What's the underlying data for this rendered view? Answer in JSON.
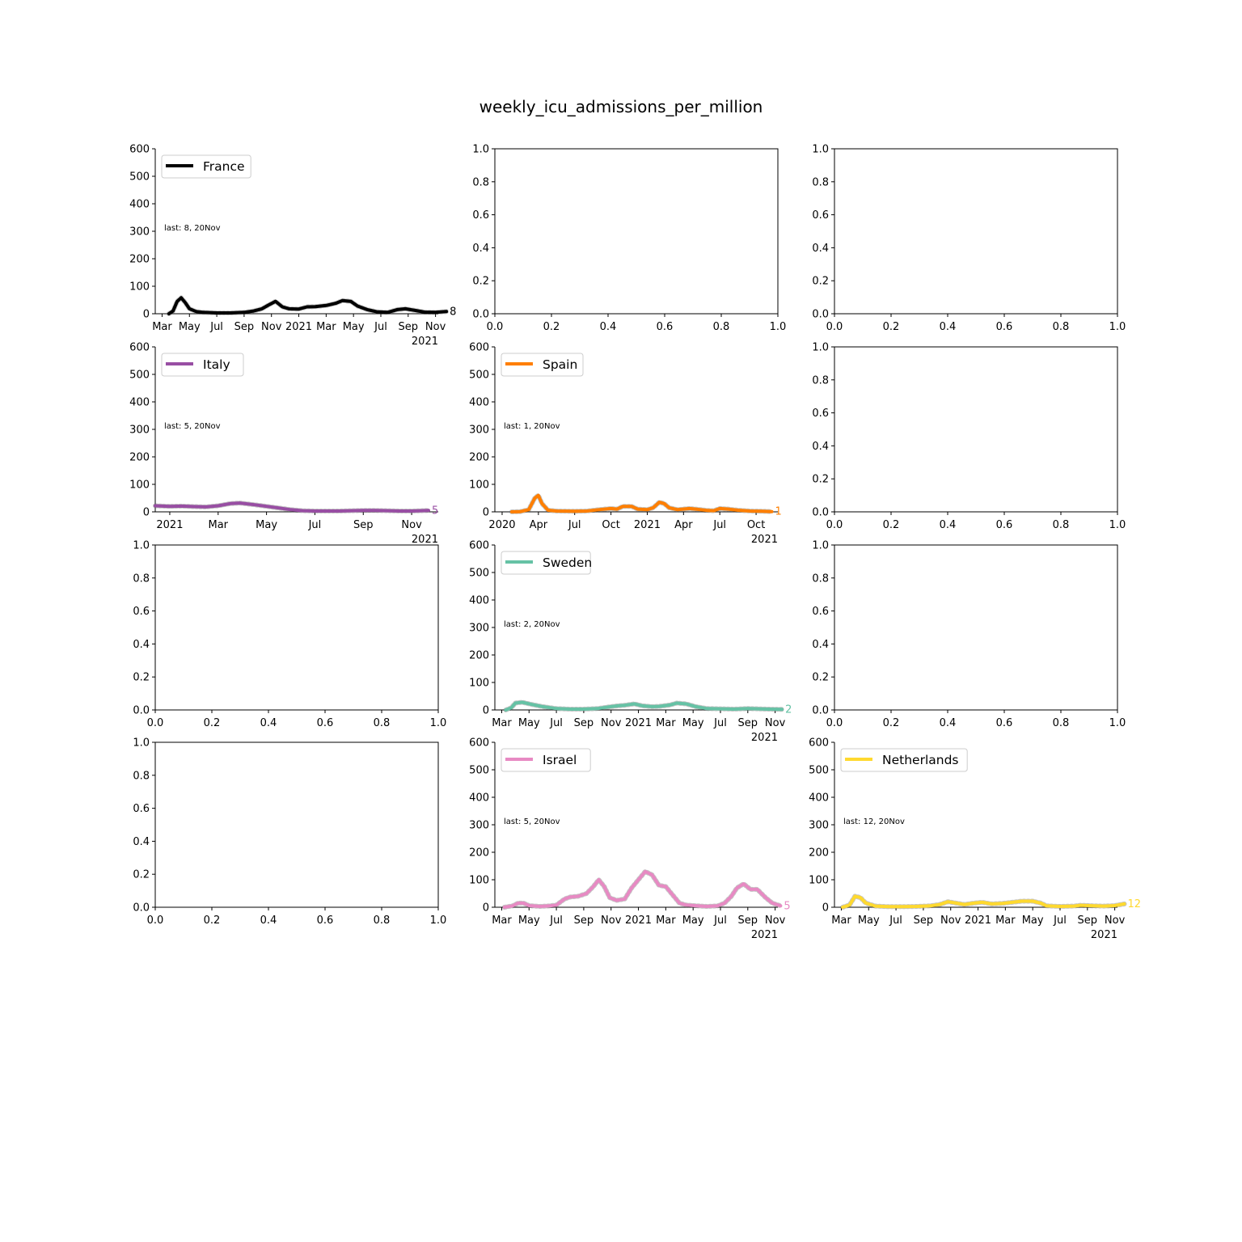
{
  "figure_title": "weekly_icu_admissions_per_million",
  "chart_data": [
    {
      "panel": [
        0,
        0
      ],
      "type": "line",
      "country": "France",
      "color": "#000000",
      "legend": "France",
      "annotation": "last: 8, 20Nov",
      "last_label": "8",
      "ylim": [
        0,
        600
      ],
      "yticks": [
        "0",
        "100",
        "200",
        "300",
        "400",
        "500",
        "600"
      ],
      "xlim": [
        -0.5,
        20.2
      ],
      "xticks": [
        {
          "x": 0,
          "label": "Mar"
        },
        {
          "x": 2,
          "label": "May"
        },
        {
          "x": 4,
          "label": "Jul"
        },
        {
          "x": 6,
          "label": "Sep"
        },
        {
          "x": 8,
          "label": "Nov"
        },
        {
          "x": 10,
          "label": "2021"
        },
        {
          "x": 12,
          "label": "Mar"
        },
        {
          "x": 14,
          "label": "May"
        },
        {
          "x": 16,
          "label": "Jul"
        },
        {
          "x": 18,
          "label": "Sep"
        },
        {
          "x": 20,
          "label": "Nov"
        }
      ],
      "xoffset": "2021",
      "points": [
        [
          0.5,
          0
        ],
        [
          0.8,
          10
        ],
        [
          1.1,
          45
        ],
        [
          1.4,
          58
        ],
        [
          1.7,
          40
        ],
        [
          2.0,
          18
        ],
        [
          2.5,
          8
        ],
        [
          3.0,
          5
        ],
        [
          4.0,
          3
        ],
        [
          5.0,
          3
        ],
        [
          6.0,
          5
        ],
        [
          6.7,
          10
        ],
        [
          7.3,
          18
        ],
        [
          7.8,
          32
        ],
        [
          8.3,
          45
        ],
        [
          8.8,
          25
        ],
        [
          9.3,
          18
        ],
        [
          10.0,
          17
        ],
        [
          10.6,
          25
        ],
        [
          11.2,
          26
        ],
        [
          12.0,
          30
        ],
        [
          12.7,
          38
        ],
        [
          13.2,
          48
        ],
        [
          13.8,
          45
        ],
        [
          14.3,
          28
        ],
        [
          15.0,
          15
        ],
        [
          15.7,
          7
        ],
        [
          16.5,
          5
        ],
        [
          17.2,
          15
        ],
        [
          17.8,
          18
        ],
        [
          18.5,
          12
        ],
        [
          19.2,
          6
        ],
        [
          20.0,
          5
        ],
        [
          20.8,
          8
        ]
      ]
    },
    {
      "panel": [
        1,
        0
      ],
      "type": "line",
      "country": "Italy",
      "color": "#984ea3",
      "legend": "Italy",
      "annotation": "last: 5, 20Nov",
      "last_label": "5",
      "ylim": [
        0,
        600
      ],
      "yticks": [
        "0",
        "100",
        "200",
        "300",
        "400",
        "500",
        "600"
      ],
      "xlim": [
        -0.6,
        11.1
      ],
      "xticks": [
        {
          "x": 0,
          "label": "2021"
        },
        {
          "x": 2,
          "label": "Mar"
        },
        {
          "x": 4,
          "label": "May"
        },
        {
          "x": 6,
          "label": "Jul"
        },
        {
          "x": 8,
          "label": "Sep"
        },
        {
          "x": 10,
          "label": "Nov"
        }
      ],
      "xoffset": "2021",
      "points": [
        [
          -0.6,
          22
        ],
        [
          0.0,
          20
        ],
        [
          0.5,
          21
        ],
        [
          1.0,
          19
        ],
        [
          1.5,
          18
        ],
        [
          2.0,
          22
        ],
        [
          2.5,
          30
        ],
        [
          2.9,
          32
        ],
        [
          3.5,
          26
        ],
        [
          4.0,
          20
        ],
        [
          4.5,
          14
        ],
        [
          5.0,
          8
        ],
        [
          5.5,
          4
        ],
        [
          6.0,
          3
        ],
        [
          7.0,
          3
        ],
        [
          7.5,
          4
        ],
        [
          8.0,
          5
        ],
        [
          8.5,
          5
        ],
        [
          9.0,
          4
        ],
        [
          9.5,
          3
        ],
        [
          10.0,
          3
        ],
        [
          10.4,
          4
        ],
        [
          10.7,
          5
        ]
      ]
    },
    {
      "panel": [
        1,
        1
      ],
      "type": "line",
      "country": "Spain",
      "color": "#ff7f00",
      "legend": "Spain",
      "annotation": "last: 1, 20Nov",
      "last_label": "1",
      "ylim": [
        0,
        600
      ],
      "yticks": [
        "0",
        "100",
        "200",
        "300",
        "400",
        "500",
        "600"
      ],
      "xlim": [
        -0.6,
        22.8
      ],
      "xticks": [
        {
          "x": 0,
          "label": "2020"
        },
        {
          "x": 3,
          "label": "Apr"
        },
        {
          "x": 6,
          "label": "Jul"
        },
        {
          "x": 9,
          "label": "Oct"
        },
        {
          "x": 12,
          "label": "2021"
        },
        {
          "x": 15,
          "label": "Apr"
        },
        {
          "x": 18,
          "label": "Jul"
        },
        {
          "x": 21,
          "label": "Oct"
        }
      ],
      "xoffset": "2021",
      "points": [
        [
          0.8,
          0
        ],
        [
          1.5,
          1
        ],
        [
          2.2,
          8
        ],
        [
          2.7,
          50
        ],
        [
          3.0,
          60
        ],
        [
          3.3,
          30
        ],
        [
          3.8,
          6
        ],
        [
          4.5,
          3
        ],
        [
          6.0,
          2
        ],
        [
          7.0,
          3
        ],
        [
          8.0,
          8
        ],
        [
          9.0,
          12
        ],
        [
          9.5,
          10
        ],
        [
          10.0,
          20
        ],
        [
          10.7,
          20
        ],
        [
          11.2,
          10
        ],
        [
          12.0,
          8
        ],
        [
          12.5,
          15
        ],
        [
          13.0,
          35
        ],
        [
          13.4,
          30
        ],
        [
          13.8,
          15
        ],
        [
          14.5,
          8
        ],
        [
          15.5,
          12
        ],
        [
          16.0,
          10
        ],
        [
          17.0,
          5
        ],
        [
          17.5,
          4
        ],
        [
          18.0,
          12
        ],
        [
          18.7,
          10
        ],
        [
          19.5,
          6
        ],
        [
          20.5,
          3
        ],
        [
          21.5,
          2
        ],
        [
          22.3,
          1
        ]
      ]
    },
    {
      "panel": [
        2,
        1
      ],
      "type": "line",
      "country": "Sweden",
      "color": "#66c2a5",
      "legend": "Sweden",
      "annotation": "last: 2, 20Nov",
      "last_label": "2",
      "ylim": [
        0,
        600
      ],
      "yticks": [
        "0",
        "100",
        "200",
        "300",
        "400",
        "500",
        "600"
      ],
      "xlim": [
        -0.5,
        20.2
      ],
      "xticks": [
        {
          "x": 0,
          "label": "Mar"
        },
        {
          "x": 2,
          "label": "May"
        },
        {
          "x": 4,
          "label": "Jul"
        },
        {
          "x": 6,
          "label": "Sep"
        },
        {
          "x": 8,
          "label": "Nov"
        },
        {
          "x": 10,
          "label": "2021"
        },
        {
          "x": 12,
          "label": "Mar"
        },
        {
          "x": 14,
          "label": "May"
        },
        {
          "x": 16,
          "label": "Jul"
        },
        {
          "x": 18,
          "label": "Sep"
        },
        {
          "x": 20,
          "label": "Nov"
        }
      ],
      "xoffset": "2021",
      "points": [
        [
          0.3,
          0
        ],
        [
          0.7,
          8
        ],
        [
          1.0,
          25
        ],
        [
          1.5,
          28
        ],
        [
          2.2,
          20
        ],
        [
          3.0,
          12
        ],
        [
          4.0,
          5
        ],
        [
          5.0,
          3
        ],
        [
          6.0,
          3
        ],
        [
          7.0,
          5
        ],
        [
          8.0,
          12
        ],
        [
          8.5,
          15
        ],
        [
          9.0,
          17
        ],
        [
          9.7,
          22
        ],
        [
          10.3,
          15
        ],
        [
          11.0,
          12
        ],
        [
          11.5,
          13
        ],
        [
          12.3,
          18
        ],
        [
          12.8,
          25
        ],
        [
          13.5,
          22
        ],
        [
          14.2,
          12
        ],
        [
          15.0,
          5
        ],
        [
          16.0,
          4
        ],
        [
          17.0,
          3
        ],
        [
          18.0,
          5
        ],
        [
          18.7,
          4
        ],
        [
          19.5,
          3
        ],
        [
          20.5,
          2
        ]
      ]
    },
    {
      "panel": [
        3,
        1
      ],
      "type": "line",
      "country": "Israel",
      "color": "#e78ac3",
      "legend": "Israel",
      "annotation": "last: 5, 20Nov",
      "last_label": "5",
      "ylim": [
        0,
        600
      ],
      "yticks": [
        "0",
        "100",
        "200",
        "300",
        "400",
        "500",
        "600"
      ],
      "xlim": [
        -0.5,
        20.2
      ],
      "xticks": [
        {
          "x": 0,
          "label": "Mar"
        },
        {
          "x": 2,
          "label": "May"
        },
        {
          "x": 4,
          "label": "Jul"
        },
        {
          "x": 6,
          "label": "Sep"
        },
        {
          "x": 8,
          "label": "Nov"
        },
        {
          "x": 10,
          "label": "2021"
        },
        {
          "x": 12,
          "label": "Mar"
        },
        {
          "x": 14,
          "label": "May"
        },
        {
          "x": 16,
          "label": "Jul"
        },
        {
          "x": 18,
          "label": "Sep"
        },
        {
          "x": 20,
          "label": "Nov"
        }
      ],
      "xoffset": "2021",
      "points": [
        [
          0.2,
          0
        ],
        [
          0.8,
          5
        ],
        [
          1.2,
          15
        ],
        [
          1.6,
          15
        ],
        [
          2.0,
          6
        ],
        [
          2.8,
          3
        ],
        [
          3.5,
          5
        ],
        [
          4.0,
          8
        ],
        [
          4.6,
          30
        ],
        [
          5.0,
          37
        ],
        [
          5.6,
          40
        ],
        [
          6.2,
          50
        ],
        [
          6.7,
          75
        ],
        [
          7.1,
          100
        ],
        [
          7.5,
          75
        ],
        [
          7.9,
          35
        ],
        [
          8.4,
          25
        ],
        [
          9.0,
          30
        ],
        [
          9.5,
          70
        ],
        [
          10.0,
          100
        ],
        [
          10.5,
          130
        ],
        [
          11.0,
          118
        ],
        [
          11.5,
          80
        ],
        [
          12.0,
          75
        ],
        [
          12.5,
          45
        ],
        [
          13.0,
          15
        ],
        [
          13.5,
          8
        ],
        [
          14.3,
          5
        ],
        [
          15.0,
          3
        ],
        [
          15.8,
          5
        ],
        [
          16.3,
          15
        ],
        [
          16.8,
          40
        ],
        [
          17.2,
          70
        ],
        [
          17.7,
          85
        ],
        [
          18.2,
          65
        ],
        [
          18.7,
          65
        ],
        [
          19.3,
          35
        ],
        [
          19.8,
          15
        ],
        [
          20.4,
          5
        ]
      ]
    },
    {
      "panel": [
        3,
        2
      ],
      "type": "line",
      "country": "Netherlands",
      "color": "#ffd92f",
      "legend": "Netherlands",
      "annotation": "last: 12, 20Nov",
      "last_label": "12",
      "ylim": [
        0,
        600
      ],
      "yticks": [
        "0",
        "100",
        "200",
        "300",
        "400",
        "500",
        "600"
      ],
      "xlim": [
        -0.5,
        20.2
      ],
      "xticks": [
        {
          "x": 0,
          "label": "Mar"
        },
        {
          "x": 2,
          "label": "May"
        },
        {
          "x": 4,
          "label": "Jul"
        },
        {
          "x": 6,
          "label": "Sep"
        },
        {
          "x": 8,
          "label": "Nov"
        },
        {
          "x": 10,
          "label": "2021"
        },
        {
          "x": 12,
          "label": "Mar"
        },
        {
          "x": 14,
          "label": "May"
        },
        {
          "x": 16,
          "label": "Jul"
        },
        {
          "x": 18,
          "label": "Sep"
        },
        {
          "x": 20,
          "label": "Nov"
        }
      ],
      "xoffset": "2021",
      "points": [
        [
          0.1,
          0
        ],
        [
          0.6,
          8
        ],
        [
          1.0,
          40
        ],
        [
          1.4,
          35
        ],
        [
          1.8,
          15
        ],
        [
          2.5,
          4
        ],
        [
          3.5,
          2
        ],
        [
          4.5,
          2
        ],
        [
          5.5,
          3
        ],
        [
          6.5,
          5
        ],
        [
          7.2,
          10
        ],
        [
          7.8,
          20
        ],
        [
          8.4,
          15
        ],
        [
          9.0,
          10
        ],
        [
          9.7,
          15
        ],
        [
          10.3,
          18
        ],
        [
          11.0,
          12
        ],
        [
          11.8,
          14
        ],
        [
          12.5,
          18
        ],
        [
          13.2,
          22
        ],
        [
          14.0,
          22
        ],
        [
          14.6,
          15
        ],
        [
          15.0,
          5
        ],
        [
          16.0,
          3
        ],
        [
          17.0,
          4
        ],
        [
          17.5,
          7
        ],
        [
          18.5,
          5
        ],
        [
          19.2,
          4
        ],
        [
          20.0,
          6
        ],
        [
          20.7,
          12
        ]
      ]
    },
    {
      "panel": [
        0,
        1
      ],
      "type": "line",
      "empty": true,
      "xlim": [
        0,
        1
      ],
      "ylim": [
        0,
        1
      ],
      "xticks": [
        "0.0",
        "0.2",
        "0.4",
        "0.6",
        "0.8",
        "1.0"
      ],
      "yticks": [
        "0.0",
        "0.2",
        "0.4",
        "0.6",
        "0.8",
        "1.0"
      ]
    },
    {
      "panel": [
        0,
        2
      ],
      "type": "line",
      "empty": true,
      "xlim": [
        0,
        1
      ],
      "ylim": [
        0,
        1
      ],
      "xticks": [
        "0.0",
        "0.2",
        "0.4",
        "0.6",
        "0.8",
        "1.0"
      ],
      "yticks": [
        "0.0",
        "0.2",
        "0.4",
        "0.6",
        "0.8",
        "1.0"
      ]
    },
    {
      "panel": [
        1,
        2
      ],
      "type": "line",
      "empty": true,
      "xlim": [
        0,
        1
      ],
      "ylim": [
        0,
        1
      ],
      "xticks": [
        "0.0",
        "0.2",
        "0.4",
        "0.6",
        "0.8",
        "1.0"
      ],
      "yticks": [
        "0.0",
        "0.2",
        "0.4",
        "0.6",
        "0.8",
        "1.0"
      ]
    },
    {
      "panel": [
        2,
        0
      ],
      "type": "line",
      "empty": true,
      "xlim": [
        0,
        1
      ],
      "ylim": [
        0,
        1
      ],
      "xticks": [
        "0.0",
        "0.2",
        "0.4",
        "0.6",
        "0.8",
        "1.0"
      ],
      "yticks": [
        "0.0",
        "0.2",
        "0.4",
        "0.6",
        "0.8",
        "1.0"
      ]
    },
    {
      "panel": [
        2,
        2
      ],
      "type": "line",
      "empty": true,
      "xlim": [
        0,
        1
      ],
      "ylim": [
        0,
        1
      ],
      "xticks": [
        "0.0",
        "0.2",
        "0.4",
        "0.6",
        "0.8",
        "1.0"
      ],
      "yticks": [
        "0.0",
        "0.2",
        "0.4",
        "0.6",
        "0.8",
        "1.0"
      ]
    },
    {
      "panel": [
        3,
        0
      ],
      "type": "line",
      "empty": true,
      "xlim": [
        0,
        1
      ],
      "ylim": [
        0,
        1
      ],
      "xticks": [
        "0.0",
        "0.2",
        "0.4",
        "0.6",
        "0.8",
        "1.0"
      ],
      "yticks": [
        "0.0",
        "0.2",
        "0.4",
        "0.6",
        "0.8",
        "1.0"
      ]
    }
  ]
}
